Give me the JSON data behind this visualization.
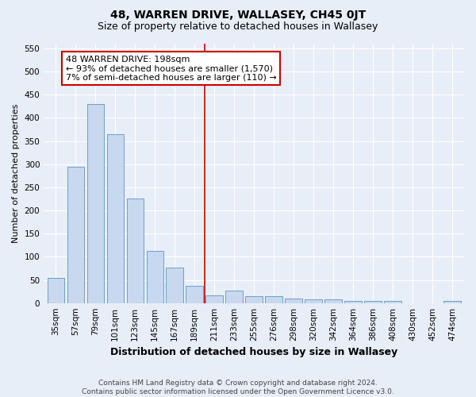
{
  "title": "48, WARREN DRIVE, WALLASEY, CH45 0JT",
  "subtitle": "Size of property relative to detached houses in Wallasey",
  "xlabel": "Distribution of detached houses by size in Wallasey",
  "ylabel": "Number of detached properties",
  "categories": [
    "35sqm",
    "57sqm",
    "79sqm",
    "101sqm",
    "123sqm",
    "145sqm",
    "167sqm",
    "189sqm",
    "211sqm",
    "233sqm",
    "255sqm",
    "276sqm",
    "298sqm",
    "320sqm",
    "342sqm",
    "364sqm",
    "386sqm",
    "408sqm",
    "430sqm",
    "452sqm",
    "474sqm"
  ],
  "values": [
    55,
    295,
    430,
    365,
    225,
    113,
    76,
    38,
    17,
    27,
    15,
    15,
    10,
    8,
    8,
    5,
    5,
    5,
    0,
    0,
    5
  ],
  "bar_color": "#c8d8ee",
  "bar_edge_color": "#6ca0c8",
  "vline_color": "#cc0000",
  "annotation_text": "48 WARREN DRIVE: 198sqm\n← 93% of detached houses are smaller (1,570)\n7% of semi-detached houses are larger (110) →",
  "annotation_box_color": "#ffffff",
  "annotation_box_edge_color": "#cc0000",
  "ylim": [
    0,
    560
  ],
  "yticks": [
    0,
    50,
    100,
    150,
    200,
    250,
    300,
    350,
    400,
    450,
    500,
    550
  ],
  "footnote": "Contains HM Land Registry data © Crown copyright and database right 2024.\nContains public sector information licensed under the Open Government Licence v3.0.",
  "bg_color": "#e8eef8",
  "grid_color": "#ffffff",
  "title_fontsize": 10,
  "subtitle_fontsize": 9,
  "xlabel_fontsize": 9,
  "ylabel_fontsize": 8,
  "tick_fontsize": 7.5,
  "annotation_fontsize": 8,
  "footnote_fontsize": 6.5
}
